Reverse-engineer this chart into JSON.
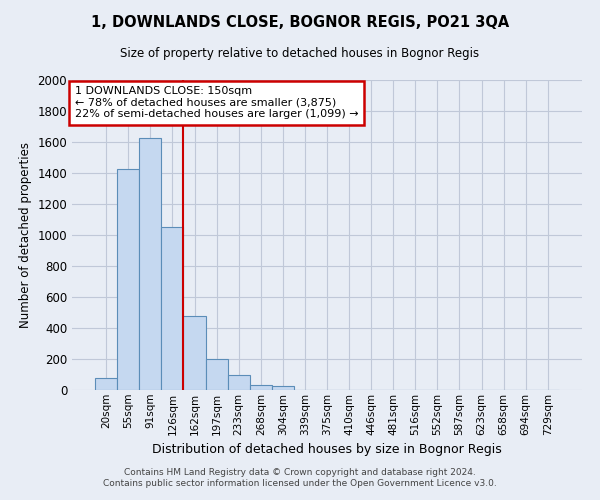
{
  "title": "1, DOWNLANDS CLOSE, BOGNOR REGIS, PO21 3QA",
  "subtitle": "Size of property relative to detached houses in Bognor Regis",
  "xlabel": "Distribution of detached houses by size in Bognor Regis",
  "ylabel": "Number of detached properties",
  "categories": [
    "20sqm",
    "55sqm",
    "91sqm",
    "126sqm",
    "162sqm",
    "197sqm",
    "233sqm",
    "268sqm",
    "304sqm",
    "339sqm",
    "375sqm",
    "410sqm",
    "446sqm",
    "481sqm",
    "516sqm",
    "552sqm",
    "587sqm",
    "623sqm",
    "658sqm",
    "694sqm",
    "729sqm"
  ],
  "values": [
    75,
    1425,
    1625,
    1050,
    475,
    200,
    100,
    35,
    25,
    0,
    0,
    0,
    0,
    0,
    0,
    0,
    0,
    0,
    0,
    0,
    0
  ],
  "bar_color": "#c5d8f0",
  "bar_edge_color": "#5b8db8",
  "annotation_text_line1": "1 DOWNLANDS CLOSE: 150sqm",
  "annotation_text_line2": "← 78% of detached houses are smaller (3,875)",
  "annotation_text_line3": "22% of semi-detached houses are larger (1,099) →",
  "annotation_box_color": "#ffffff",
  "annotation_box_edge_color": "#cc0000",
  "vline_color": "#cc0000",
  "ylim": [
    0,
    2000
  ],
  "yticks": [
    0,
    200,
    400,
    600,
    800,
    1000,
    1200,
    1400,
    1600,
    1800,
    2000
  ],
  "footer_line1": "Contains HM Land Registry data © Crown copyright and database right 2024.",
  "footer_line2": "Contains public sector information licensed under the Open Government Licence v3.0.",
  "bg_color": "#e8edf5",
  "plot_bg_color": "#e8edf5",
  "grid_color": "#c0c8d8"
}
